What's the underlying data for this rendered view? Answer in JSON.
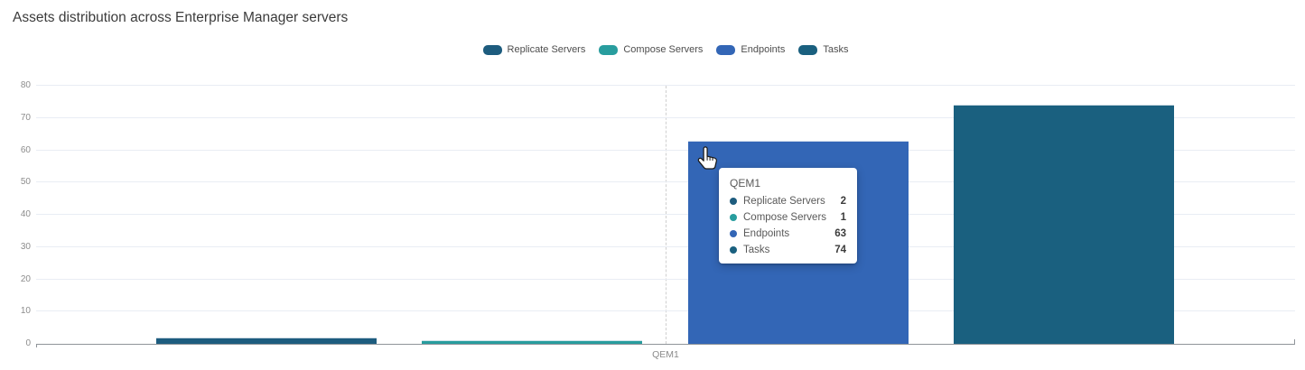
{
  "page": {
    "title": "Assets distribution across Enterprise Manager servers"
  },
  "chart_data": {
    "type": "bar",
    "title": "Assets distribution across Enterprise Manager servers",
    "categories": [
      "QEM1"
    ],
    "series": [
      {
        "name": "Replicate Servers",
        "color": "#1d5c7e",
        "values": [
          2
        ]
      },
      {
        "name": "Compose Servers",
        "color": "#289d9e",
        "values": [
          1
        ]
      },
      {
        "name": "Endpoints",
        "color": "#3366b6",
        "values": [
          63
        ]
      },
      {
        "name": "Tasks",
        "color": "#1a607f",
        "values": [
          74
        ]
      }
    ],
    "xlabel": "",
    "ylabel": "",
    "ylim": [
      0,
      80
    ],
    "yticks": [
      0,
      10,
      20,
      30,
      40,
      50,
      60,
      70,
      80
    ],
    "grid": "horizontal",
    "legend_position": "top-center",
    "gridline_color": "#e9edf4",
    "axis_color": "#8f9499",
    "tick_label_color": "#8c8c8c"
  },
  "legend": {
    "items": [
      {
        "label": "Replicate Servers",
        "color": "#1d5c7e"
      },
      {
        "label": "Compose Servers",
        "color": "#289d9e"
      },
      {
        "label": "Endpoints",
        "color": "#3366b6"
      },
      {
        "label": "Tasks",
        "color": "#1a607f"
      }
    ]
  },
  "x_axis": {
    "category_label": "QEM1"
  },
  "tooltip": {
    "header": "QEM1",
    "rows": [
      {
        "label": "Replicate Servers",
        "value": "2",
        "color": "#1d5c7e"
      },
      {
        "label": "Compose Servers",
        "value": "1",
        "color": "#289d9e"
      },
      {
        "label": "Endpoints",
        "value": "63",
        "color": "#3366b6"
      },
      {
        "label": "Tasks",
        "value": "74",
        "color": "#1a607f"
      }
    ]
  },
  "cursor": {
    "icon": "hand-pointer"
  }
}
